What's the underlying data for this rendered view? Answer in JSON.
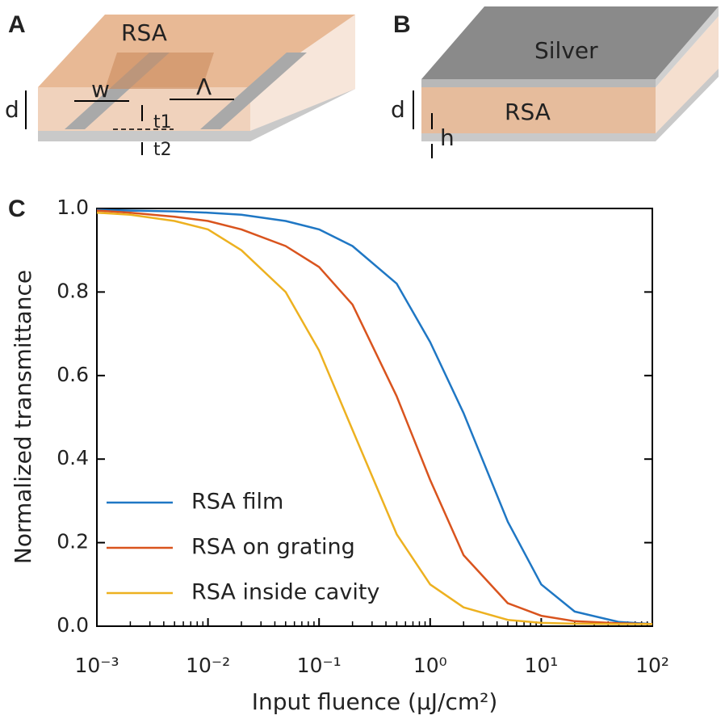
{
  "panels": {
    "a": {
      "letter": "A",
      "material": "RSA",
      "width": "w",
      "period": "Λ",
      "thickness": "d",
      "t1": "t1",
      "t2": "t2"
    },
    "b": {
      "letter": "B",
      "metal": "Silver",
      "material": "RSA",
      "thickness": "d",
      "gap": "h"
    }
  },
  "chart_data": {
    "type": "line",
    "panel": "C",
    "xlabel": "Input fluence (μJ/cm²)",
    "ylabel": "Normalized transmittance",
    "log_x": true,
    "xlim": [
      0.001,
      100
    ],
    "ylim": [
      0,
      1
    ],
    "xticks": [
      {
        "value": 0.001,
        "label": "10⁻³"
      },
      {
        "value": 0.01,
        "label": "10⁻²"
      },
      {
        "value": 0.1,
        "label": "10⁻¹"
      },
      {
        "value": 1,
        "label": "10⁰"
      },
      {
        "value": 10,
        "label": "10¹"
      },
      {
        "value": 100,
        "label": "10²"
      }
    ],
    "yticks": [
      {
        "value": 0,
        "label": "0.0"
      },
      0.2,
      0.4,
      0.6,
      0.8,
      {
        "value": 1,
        "label": "1.0"
      }
    ],
    "legend": "lower left",
    "x": [
      0.001,
      0.002,
      0.005,
      0.01,
      0.02,
      0.05,
      0.1,
      0.2,
      0.5,
      1,
      2,
      5,
      10,
      20,
      50,
      100
    ],
    "series": [
      {
        "name": "RSA film",
        "color": "#1f77c4",
        "values": [
          0.997,
          0.995,
          0.993,
          0.99,
          0.985,
          0.97,
          0.95,
          0.91,
          0.82,
          0.68,
          0.51,
          0.25,
          0.1,
          0.035,
          0.01,
          0.005
        ]
      },
      {
        "name": "RSA on grating",
        "color": "#d9541e",
        "values": [
          0.995,
          0.99,
          0.98,
          0.97,
          0.95,
          0.91,
          0.86,
          0.77,
          0.55,
          0.35,
          0.17,
          0.055,
          0.025,
          0.012,
          0.007,
          0.005
        ]
      },
      {
        "name": "RSA inside cavity",
        "color": "#edb120",
        "values": [
          0.99,
          0.985,
          0.97,
          0.95,
          0.9,
          0.8,
          0.66,
          0.47,
          0.22,
          0.1,
          0.045,
          0.015,
          0.008,
          0.006,
          0.005,
          0.005
        ]
      }
    ]
  }
}
